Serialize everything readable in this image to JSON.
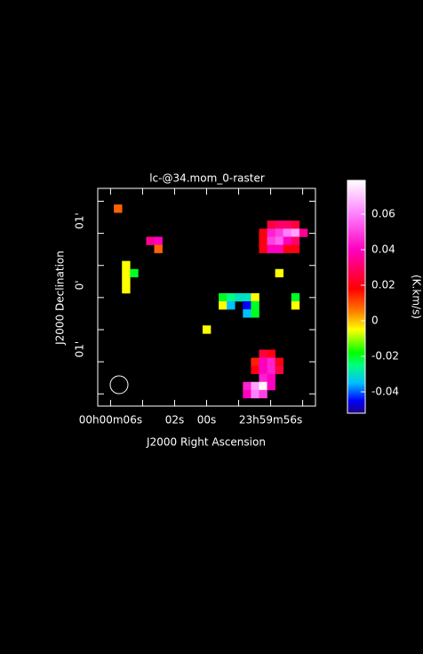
{
  "chart_data": {
    "type": "raster",
    "title": "lc-@34.mom_0-raster",
    "x_label": "J2000 Right Ascension",
    "y_label": "J2000 Declination",
    "colorbar_label": "(K.km/s)",
    "xlim": [
      6.8,
      -6.8
    ],
    "ylim": [
      -1.69,
      1.7
    ],
    "xticks": [
      {
        "value": 6,
        "label": "00h00m06s"
      },
      {
        "value": 2,
        "label": "02s"
      },
      {
        "value": 0,
        "label": "00s"
      },
      {
        "value": -4,
        "label": "23h59m56s"
      }
    ],
    "xminorticks": [
      4,
      -2,
      -6
    ],
    "yticks": [
      {
        "value": 1,
        "label": "01'"
      },
      {
        "value": 0,
        "label": "0'"
      },
      {
        "value": -1,
        "label": "01'"
      }
    ],
    "yminorticks": [
      1.5,
      0.5,
      -0.5,
      -1.5
    ],
    "raster_shape": [
      27,
      27
    ],
    "cells": [
      [
        2,
        2,
        0.008
      ],
      [
        6,
        6,
        0.035
      ],
      [
        7,
        6,
        0.04
      ],
      [
        7,
        7,
        0.008
      ],
      [
        3,
        9,
        -0.005
      ],
      [
        3,
        10,
        -0.005
      ],
      [
        3,
        11,
        -0.005
      ],
      [
        3,
        12,
        -0.005
      ],
      [
        4,
        10,
        -0.02
      ],
      [
        21,
        4,
        0.025
      ],
      [
        22,
        4,
        0.03
      ],
      [
        23,
        4,
        0.03
      ],
      [
        24,
        4,
        0.025
      ],
      [
        20,
        5,
        0.02
      ],
      [
        21,
        5,
        0.045
      ],
      [
        22,
        5,
        0.05
      ],
      [
        23,
        5,
        0.06
      ],
      [
        24,
        5,
        0.065
      ],
      [
        25,
        5,
        0.035
      ],
      [
        20,
        6,
        0.02
      ],
      [
        21,
        6,
        0.05
      ],
      [
        22,
        6,
        0.055
      ],
      [
        23,
        6,
        0.04
      ],
      [
        24,
        6,
        0.03
      ],
      [
        20,
        7,
        0.02
      ],
      [
        21,
        7,
        0.04
      ],
      [
        22,
        7,
        0.04
      ],
      [
        23,
        7,
        0.02
      ],
      [
        24,
        7,
        0.02
      ],
      [
        22,
        10,
        -0.005
      ],
      [
        15,
        13,
        -0.02
      ],
      [
        16,
        13,
        -0.025
      ],
      [
        17,
        13,
        -0.03
      ],
      [
        18,
        13,
        -0.03
      ],
      [
        19,
        13,
        -0.005
      ],
      [
        24,
        13,
        -0.02
      ],
      [
        15,
        14,
        -0.005
      ],
      [
        16,
        14,
        -0.035
      ],
      [
        18,
        14,
        -0.045
      ],
      [
        19,
        14,
        -0.02
      ],
      [
        24,
        14,
        -0.005
      ],
      [
        18,
        15,
        -0.035
      ],
      [
        19,
        15,
        -0.02
      ],
      [
        13,
        17,
        -0.005
      ],
      [
        20,
        20,
        0.025
      ],
      [
        21,
        20,
        0.02
      ],
      [
        19,
        21,
        0.015
      ],
      [
        20,
        21,
        0.04
      ],
      [
        21,
        21,
        0.045
      ],
      [
        22,
        21,
        0.02
      ],
      [
        19,
        22,
        0.02
      ],
      [
        20,
        22,
        0.04
      ],
      [
        21,
        22,
        0.045
      ],
      [
        22,
        22,
        0.025
      ],
      [
        20,
        23,
        0.045
      ],
      [
        21,
        23,
        0.04
      ],
      [
        18,
        24,
        0.045
      ],
      [
        19,
        24,
        0.065
      ],
      [
        20,
        24,
        0.078
      ],
      [
        21,
        24,
        0.04
      ],
      [
        18,
        25,
        0.04
      ],
      [
        19,
        25,
        0.06
      ],
      [
        20,
        25,
        0.05
      ]
    ],
    "clim": [
      -0.052,
      0.079
    ],
    "cticks": [
      0.06,
      0.04,
      0.02,
      0,
      -0.02,
      -0.04
    ],
    "colormap": [
      [
        -0.052,
        "#200080"
      ],
      [
        -0.045,
        "#0000ff"
      ],
      [
        -0.035,
        "#00c0ff"
      ],
      [
        -0.025,
        "#00ff80"
      ],
      [
        -0.018,
        "#00ff00"
      ],
      [
        -0.005,
        "#ffff00"
      ],
      [
        0.005,
        "#ff8000"
      ],
      [
        0.018,
        "#ff0000"
      ],
      [
        0.04,
        "#ff00c0"
      ],
      [
        0.06,
        "#ff80ff"
      ],
      [
        0.079,
        "#ffffff"
      ]
    ]
  }
}
